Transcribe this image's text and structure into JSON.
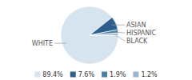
{
  "chart_data": {
    "type": "pie",
    "categories": [
      "WHITE",
      "ASIAN",
      "HISPANIC",
      "BLACK"
    ],
    "values": [
      89.4,
      7.6,
      1.9,
      1.2
    ],
    "value_labels": [
      "89.4%",
      "7.6%",
      "1.9%",
      "1.2%"
    ],
    "colors": [
      "#d6e4f0",
      "#2d5f8a",
      "#4a80a8",
      "#9ab5cc"
    ],
    "legend": "bottom"
  }
}
